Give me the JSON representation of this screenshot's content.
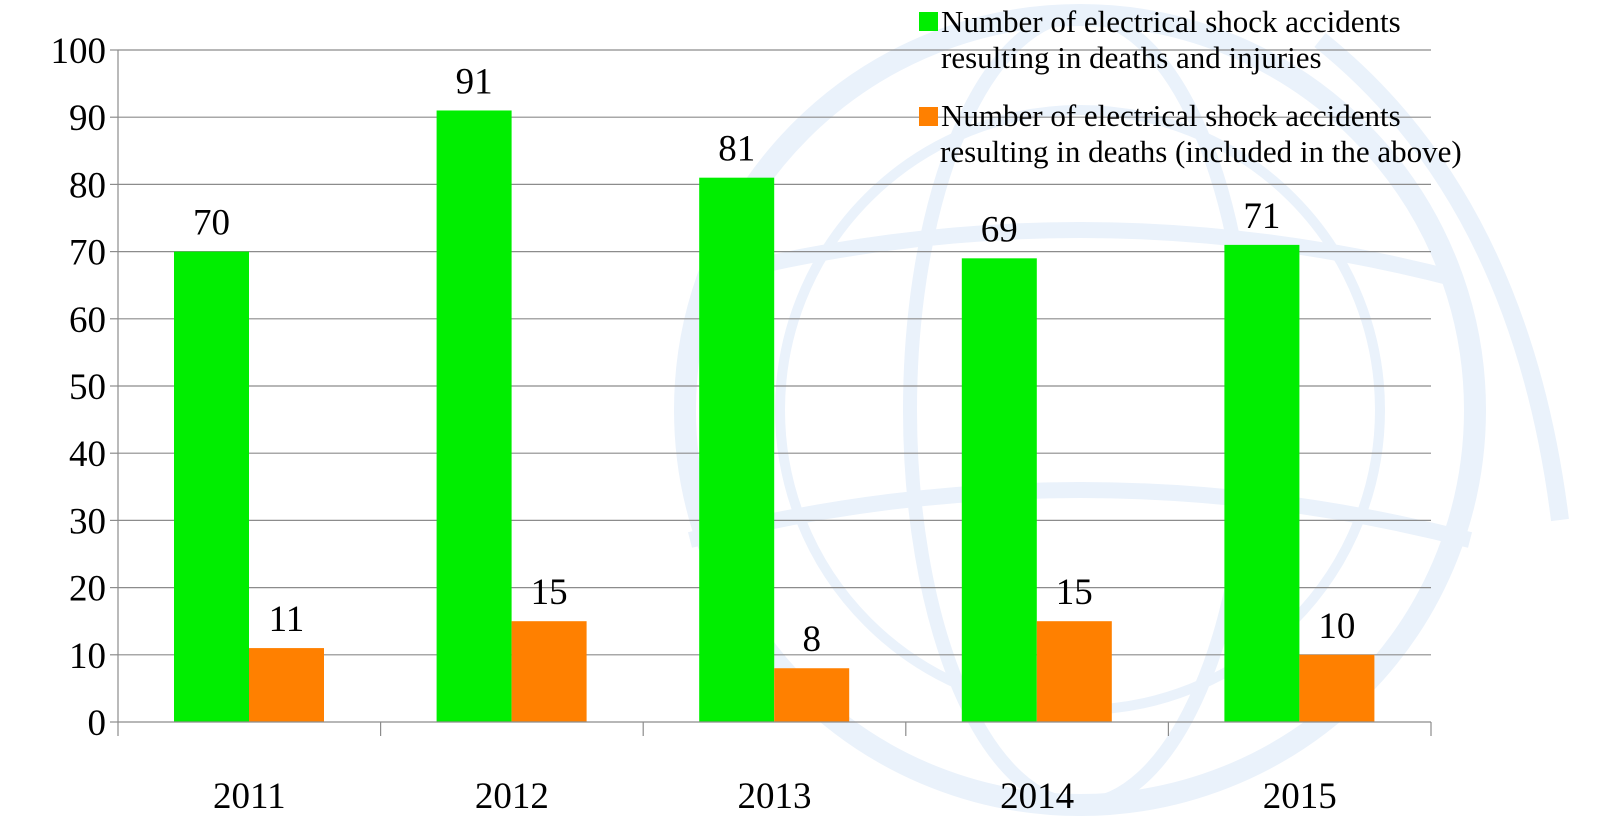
{
  "chart_data": {
    "type": "bar",
    "categories": [
      "2011",
      "2012",
      "2013",
      "2014",
      "2015"
    ],
    "series": [
      {
        "name": "Number of electrical shock accidents resulting in deaths and injuries",
        "color": "#00ee00",
        "values": [
          70,
          91,
          81,
          69,
          71
        ]
      },
      {
        "name": "Number of electrical shock accidents resulting in deaths (included in the above)",
        "color": "#ff8000",
        "values": [
          11,
          15,
          8,
          15,
          10
        ]
      }
    ],
    "yticks": [
      "0",
      "10",
      "20",
      "30",
      "40",
      "50",
      "60",
      "70",
      "80",
      "90",
      "100"
    ],
    "ylim": [
      0,
      100
    ],
    "grid": true,
    "legend_position": "top-right",
    "data_labels": true,
    "background_watermark": "faint light-blue globe"
  },
  "legend": {
    "items": [
      {
        "line1": "Number of electrical shock accidents",
        "line2": "resulting in deaths and injuries"
      },
      {
        "line1": "Number of electrical shock accidents",
        "line2": "resulting in deaths (included in the above)"
      }
    ]
  }
}
